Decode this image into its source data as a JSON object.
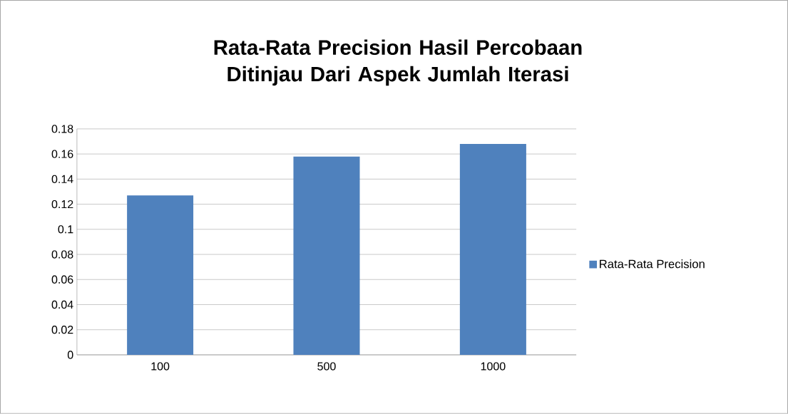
{
  "chart_data": {
    "type": "bar",
    "title": "Rata-Rata Precision Hasil Percobaan Ditinjau Dari Aspek Jumlah Iterasi",
    "categories": [
      "100",
      "500",
      "1000"
    ],
    "series": [
      {
        "name": "Rata-Rata Precision",
        "color": "#4f81bd",
        "values": [
          0.127,
          0.158,
          0.168
        ]
      }
    ],
    "ylim": [
      0,
      0.18
    ],
    "yticks": [
      0,
      0.02,
      0.04,
      0.06,
      0.08,
      0.1,
      0.12,
      0.14,
      0.16,
      0.18
    ],
    "grid": "y",
    "legend": "right"
  }
}
